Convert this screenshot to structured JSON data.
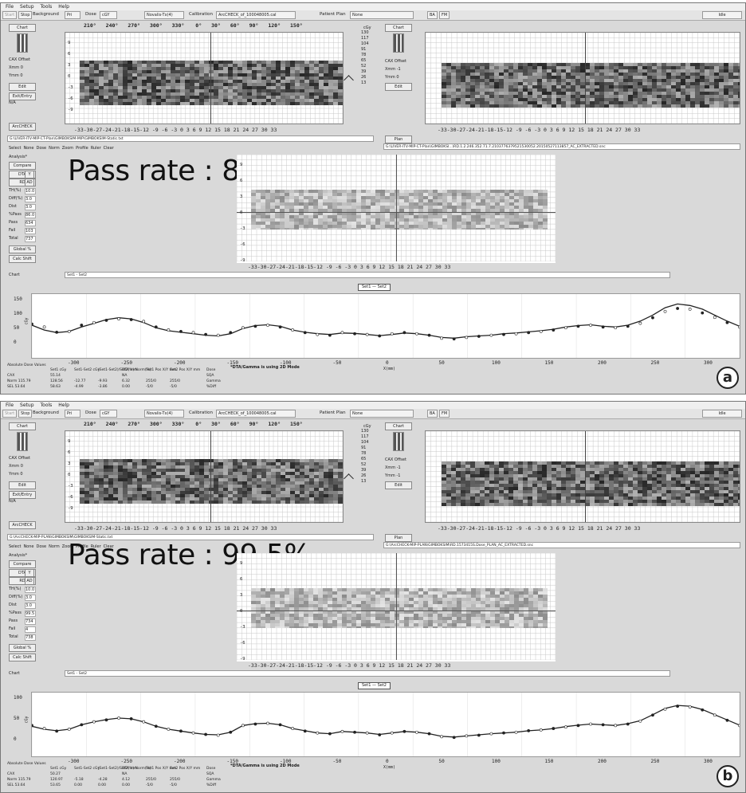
{
  "panels": [
    {
      "menu": [
        "File",
        "Setup",
        "Tools",
        "Help"
      ],
      "toolbar": {
        "start": "Start",
        "stop": "Stop",
        "background": "Background",
        "bg_value": "Pri",
        "dose_label": "Dose",
        "dose_value": "cGY",
        "machine": "Novalis-Tx(4)",
        "calibration_label": "Calibration",
        "calibration_value": "ArcCHECK_of_100048005.cal",
        "patient_plan_label": "Patient Plan",
        "patient_plan_value": "None",
        "ba": "BA",
        "fm": "FM",
        "status": "Idle"
      },
      "angles": [
        "210°",
        "240°",
        "270°",
        "300°",
        "330°",
        "0°",
        "30°",
        "60°",
        "90°",
        "120°",
        "150°"
      ],
      "y_ticks": [
        "9",
        "6",
        "3",
        "0",
        "-3",
        "-6",
        "-9"
      ],
      "x_ticks": "-33-30-27-24-21-18-15-12 -9 -6 -3  0  3  6  9 12 15 18 21 24 27 30 33",
      "scale": [
        "130",
        "117",
        "104",
        "91",
        "78",
        "65",
        "52",
        "39",
        "26",
        "13"
      ],
      "scale_unit": "cGy",
      "left_side": {
        "chart": "Chart",
        "cax_offset": "CAX Offset",
        "xmm": "Xmm 0",
        "ymm": "Ymm 0",
        "edit": "Edit",
        "exit_entry": "Exit/Entry",
        "na": "N/A",
        "arccheck": "ArcCHECK"
      },
      "right_side": {
        "chart": "Chart",
        "cax_offset": "CAX Offset",
        "xmm": "Xmm -1",
        "ymm": "Ymm 0",
        "edit": "Edit",
        "plan": "Plan"
      },
      "left_path": "G:\\LIVER-ITV-MIP-CT-Plan\\GIMBOKSIM-MIP\\GIMBOKSIM-Static.txt",
      "right_path": "G:\\LIVER-ITV-MIP-CT-Plan\\GIMBOKSI...\\RD.1.2.246.352.71.7.2103776379521530052.20150527113857_AC_EXTRACTED.snc",
      "select_row": [
        "Select",
        "None",
        "Dose",
        "Norm",
        "Zoom",
        "Profile",
        "Ruler",
        "Clear"
      ],
      "analysis": {
        "title": "Analysis*",
        "compare": "Compare",
        "dta": "DTA",
        "y": "Y",
        "rd": "RD",
        "ad": "AD",
        "th_label": "TH(%)",
        "th_value": "10.0",
        "diff_label": "Diff(%)",
        "diff_value": "3.0",
        "dist_label": "Dist",
        "dist_value": "3.0",
        "pass_pct_label": "%Pass",
        "pass_pct_value": "86.0",
        "pass_label": "Pass",
        "pass_value": "634",
        "fail_label": "Fail",
        "fail_value": "103",
        "total_label": "Total",
        "total_value": "737",
        "global": "Global %",
        "calc": "Calc Shift"
      },
      "pass_rate": "Pass rate : 86.0%",
      "chart_bar_label": "Chart",
      "chart_bar_value": "Set1 - Set2",
      "legend": "Set1 — Set2",
      "profile_y_label": "cGy",
      "profile_y_ticks": [
        "150",
        "100",
        "50",
        "0"
      ],
      "profile_x_ticks": [
        "-300",
        "-250",
        "-200",
        "-150",
        "-100",
        "-50",
        "0",
        "50",
        "100",
        "150",
        "200",
        "250",
        "300"
      ],
      "profile_x_label": "X(mm)",
      "dta_note": "*DTA/Gamma is using 2D Mode",
      "table": {
        "header": "Absolute Dose Values",
        "c1": [
          "Set1 cGy",
          "55.14",
          "128.56",
          "58.63"
        ],
        "c2": [
          "Set1-Set2 cGy",
          "",
          "-12.77",
          "-4.99"
        ],
        "c3": [
          "(Set1-Set2)/Set2(%) Norm(%)",
          "",
          "-9.93",
          "-3.86"
        ],
        "c4": [
          "DTA mm",
          "NA",
          "6.32",
          "0.00"
        ],
        "c5": [
          "Set1 Pos X/Y mm",
          "",
          "255/0",
          "-5/0"
        ],
        "c6": [
          "Set2 Pos X/Y mm",
          "",
          "255/0",
          "-5/0"
        ],
        "rows": [
          "CAX",
          "Norm 115.79",
          "SEL 53.64"
        ],
        "c7": [
          "Dose",
          "SQA",
          "Gamma",
          "%Diff"
        ]
      },
      "label": "a",
      "profile": {
        "set1": [
          78,
          70,
          56,
          58,
          75,
          82,
          88,
          92,
          90,
          85,
          70,
          62,
          58,
          55,
          50,
          48,
          55,
          68,
          72,
          75,
          70,
          62,
          55,
          50,
          48,
          55,
          52,
          50,
          46,
          52,
          55,
          52,
          48,
          40,
          38,
          42,
          45,
          48,
          50,
          52,
          55,
          58,
          62,
          68,
          72,
          75,
          70,
          68,
          72,
          80,
          95,
          112,
          120,
          118,
          108,
          96,
          82,
          70
        ],
        "set2": [
          75,
          62,
          55,
          58,
          70,
          80,
          90,
          95,
          92,
          82,
          68,
          60,
          56,
          52,
          48,
          46,
          52,
          66,
          74,
          76,
          72,
          62,
          56,
          52,
          50,
          54,
          53,
          50,
          47,
          50,
          54,
          52,
          48,
          42,
          40,
          44,
          46,
          48,
          52,
          54,
          57,
          60,
          64,
          70,
          74,
          76,
          72,
          70,
          75,
          86,
          102,
          122,
          132,
          128,
          118,
          102,
          86,
          72
        ]
      }
    },
    {
      "menu": [
        "File",
        "Setup",
        "Tools",
        "Help"
      ],
      "toolbar": {
        "start": "Start",
        "stop": "Stop",
        "background": "Background",
        "bg_value": "Pri",
        "dose_label": "Dose",
        "dose_value": "cGY",
        "machine": "Novalis-Tx(4)",
        "calibration_label": "Calibration",
        "calibration_value": "ArcCHECK_of_100048005.cal",
        "patient_plan_label": "Patient Plan",
        "patient_plan_value": "None",
        "ba": "BA",
        "fm": "FM",
        "status": "Idle"
      },
      "angles": [
        "210°",
        "240°",
        "270°",
        "300°",
        "330°",
        "0°",
        "30°",
        "60°",
        "90°",
        "120°",
        "150°"
      ],
      "y_ticks": [
        "9",
        "6",
        "3",
        "0",
        "-3",
        "-6",
        "-9"
      ],
      "x_ticks": "-33-30-27-24-21-18-15-12 -9 -6 -3  0  3  6  9 12 15 18 21 24 27 30 33",
      "scale": [
        "130",
        "117",
        "104",
        "91",
        "78",
        "65",
        "52",
        "39",
        "26",
        "13"
      ],
      "scale_unit": "cGy",
      "left_side": {
        "chart": "Chart",
        "cax_offset": "CAX Offset",
        "xmm": "Xmm 0",
        "ymm": "Ymm 0",
        "edit": "Edit",
        "exit_entry": "Exit/Entry",
        "na": "N/A",
        "arccheck": "ArcCHECK"
      },
      "right_side": {
        "chart": "Chart",
        "cax_offset": "CAX Offset",
        "xmm": "Xmm -1",
        "ymm": "Ymm -1",
        "edit": "Edit",
        "plan": "Plan"
      },
      "left_path": "G:\\ArcCHECK-MIP-PLAN\\GIMBOKSIM\\GIMBOKSIM-Static.txt",
      "right_path": "G:\\ArcCHECK-MIP-PLAN\\GIMBOKSIM\\RD.1573415S.Dose_PLAN_AC_EXTRACTED.snc",
      "select_row": [
        "Select",
        "None",
        "Dose",
        "Norm",
        "Zoom",
        "Profile",
        "Ruler",
        "Clear"
      ],
      "analysis": {
        "title": "Analysis*",
        "compare": "Compare",
        "dta": "DTA",
        "y": "Y",
        "rd": "RD",
        "ad": "AD",
        "th_label": "TH(%)",
        "th_value": "10.0",
        "diff_label": "Diff(%)",
        "diff_value": "3.0",
        "dist_label": "Dist",
        "dist_value": "3.0",
        "pass_pct_label": "%Pass",
        "pass_pct_value": "99.5",
        "pass_label": "Pass",
        "pass_value": "734",
        "fail_label": "Fail",
        "fail_value": "4",
        "total_label": "Total",
        "total_value": "738",
        "global": "Global %",
        "calc": "Calc Shift"
      },
      "pass_rate": "Pass rate : 99.5%",
      "chart_bar_label": "Chart",
      "chart_bar_value": "Set1 - Set2",
      "legend": "Set1 — Set2",
      "profile_y_label": "cGy",
      "profile_y_ticks": [
        "100",
        "50",
        "0"
      ],
      "profile_x_ticks": [
        "-300",
        "-250",
        "-200",
        "-150",
        "-100",
        "-50",
        "0",
        "50",
        "100",
        "150",
        "200",
        "250",
        "300"
      ],
      "profile_x_label": "X(mm)",
      "dta_note": "*DTA/Gamma is using 2D Mode",
      "table": {
        "header": "Absolute Dose Values",
        "c1": [
          "Set1 cGy",
          "50.27",
          "120.97",
          "53.65"
        ],
        "c2": [
          "Set1-Set2 cGy",
          "",
          "-5.18",
          "0.00"
        ],
        "c3": [
          "(Set1-Set2)/Set2(%) Norm(%)",
          "",
          "-4.28",
          "0.00"
        ],
        "c4": [
          "DTA mm",
          "NA",
          "4.12",
          "0.00"
        ],
        "c5": [
          "Set1 Pos X/Y mm",
          "",
          "255/0",
          "-5/0"
        ],
        "c6": [
          "Set2 Pos X/Y mm",
          "",
          "255/0",
          "-5/0"
        ],
        "rows": [
          "CAX",
          "Norm 115.79",
          "SEL 53.64"
        ],
        "c7": [
          "Dose",
          "SQA",
          "Gamma",
          "%Diff"
        ]
      },
      "label": "b",
      "profile": {
        "set1": [
          70,
          62,
          55,
          60,
          72,
          80,
          85,
          90,
          88,
          80,
          68,
          60,
          55,
          50,
          46,
          44,
          52,
          70,
          74,
          76,
          72,
          62,
          55,
          50,
          48,
          54,
          52,
          50,
          45,
          50,
          54,
          52,
          48,
          40,
          38,
          42,
          44,
          48,
          50,
          52,
          56,
          58,
          62,
          66,
          70,
          74,
          72,
          70,
          74,
          82,
          98,
          114,
          122,
          120,
          112,
          98,
          84,
          70
        ],
        "set2": [
          68,
          60,
          56,
          60,
          72,
          80,
          86,
          90,
          88,
          80,
          68,
          60,
          55,
          50,
          46,
          45,
          52,
          70,
          75,
          76,
          72,
          62,
          56,
          50,
          48,
          54,
          52,
          50,
          46,
          50,
          54,
          52,
          48,
          41,
          39,
          42,
          45,
          48,
          50,
          52,
          56,
          58,
          62,
          67,
          71,
          74,
          72,
          70,
          75,
          83,
          99,
          116,
          124,
          122,
          113,
          99,
          85,
          71
        ]
      }
    }
  ]
}
